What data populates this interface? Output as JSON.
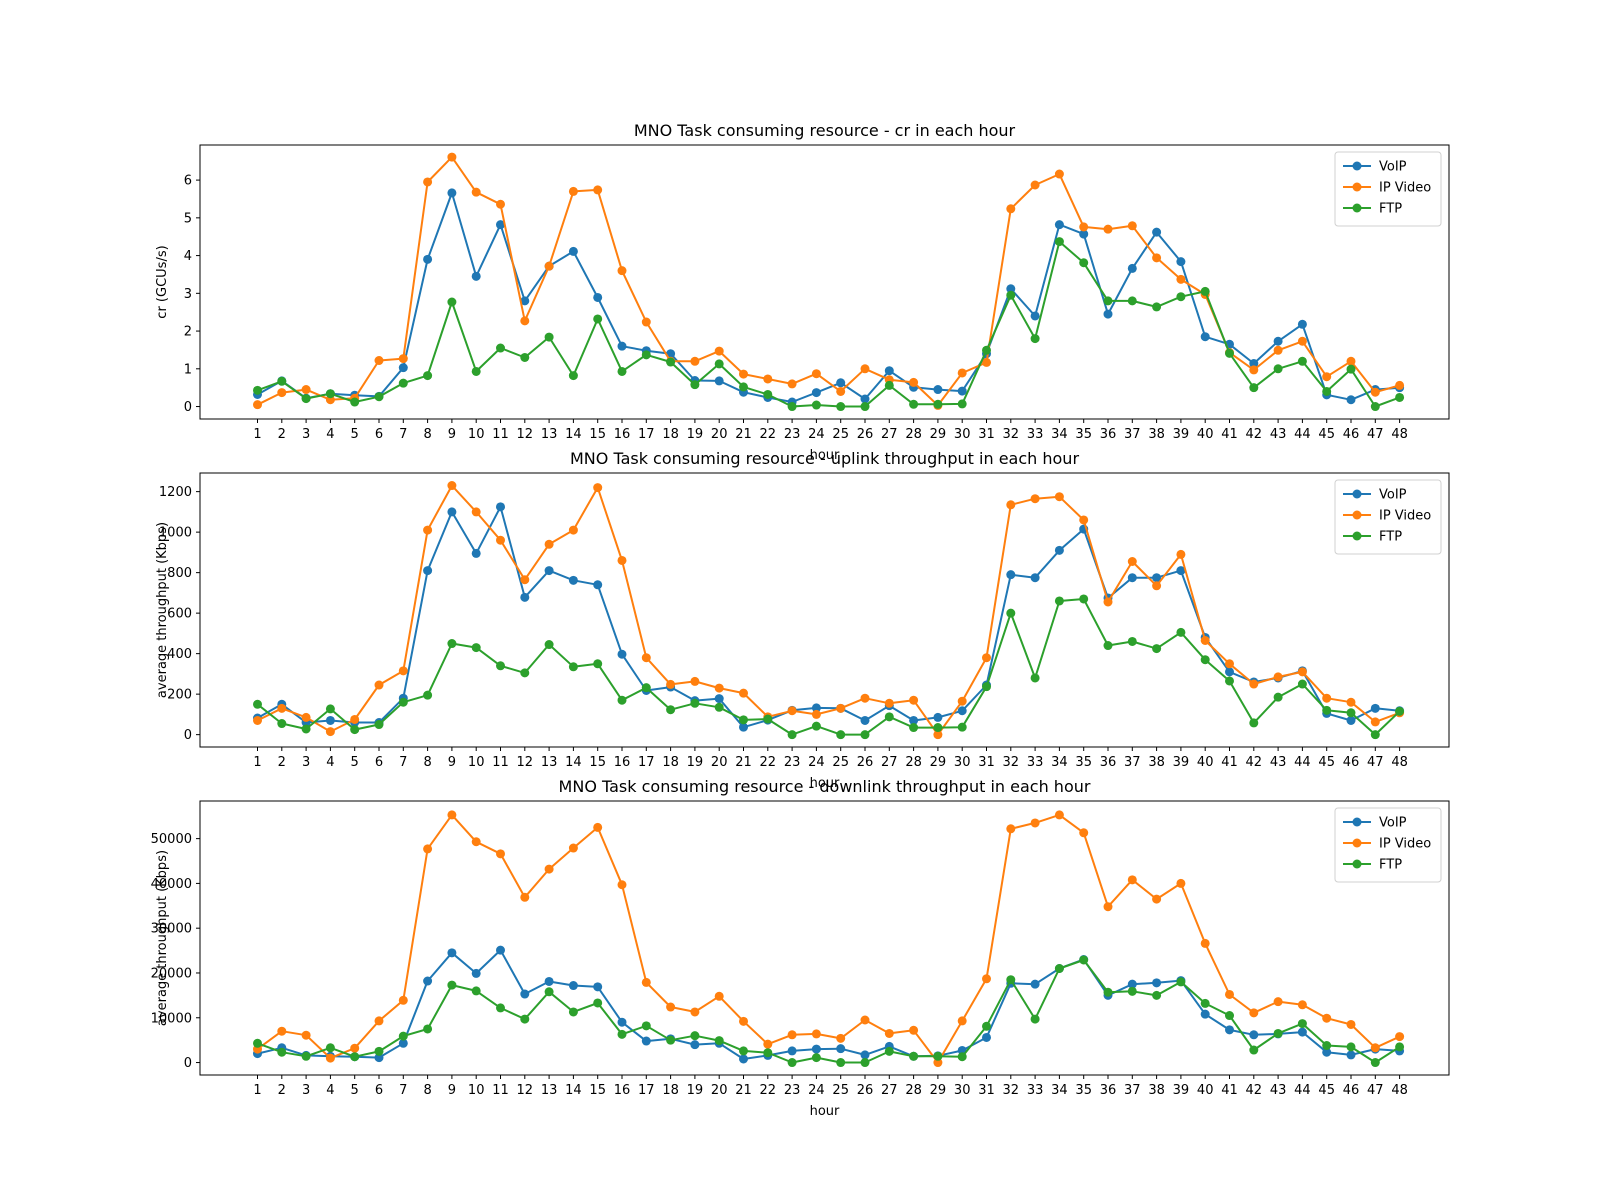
{
  "chart_data": [
    {
      "type": "line",
      "title": "MNO Task consuming resource - cr in each hour",
      "xlabel": "hour",
      "ylabel": "cr (GCUs/s)",
      "ylim": [
        -0.33,
        6.93
      ],
      "yticks": [
        0,
        1,
        2,
        3,
        4,
        5,
        6
      ],
      "legend": "top-right",
      "grid": false,
      "x": [
        1,
        2,
        3,
        4,
        5,
        6,
        7,
        8,
        9,
        10,
        11,
        12,
        13,
        14,
        15,
        16,
        17,
        18,
        19,
        20,
        21,
        22,
        23,
        24,
        25,
        26,
        27,
        28,
        29,
        30,
        31,
        32,
        33,
        34,
        35,
        36,
        37,
        38,
        39,
        40,
        41,
        42,
        43,
        44,
        45,
        46,
        47,
        48
      ],
      "series": [
        {
          "name": "VoIP",
          "color": "#1f77b4",
          "values": [
            0.32,
            0.68,
            0.22,
            0.34,
            0.3,
            0.27,
            1.03,
            3.9,
            5.66,
            3.45,
            4.82,
            2.8,
            3.72,
            4.11,
            2.89,
            1.6,
            1.48,
            1.4,
            0.69,
            0.68,
            0.38,
            0.24,
            0.12,
            0.37,
            0.63,
            0.2,
            0.95,
            0.51,
            0.45,
            0.41,
            1.4,
            3.12,
            2.4,
            4.82,
            4.57,
            2.45,
            3.66,
            4.62,
            3.84,
            1.85,
            1.65,
            1.14,
            1.73,
            2.18,
            0.31,
            0.18,
            0.45,
            0.5
          ]
        },
        {
          "name": "IP Video",
          "color": "#ff7f0e",
          "values": [
            0.05,
            0.37,
            0.45,
            0.18,
            0.22,
            1.22,
            1.27,
            5.95,
            6.61,
            5.68,
            5.36,
            2.27,
            3.72,
            5.7,
            5.74,
            3.6,
            2.24,
            1.2,
            1.2,
            1.47,
            0.86,
            0.73,
            0.6,
            0.87,
            0.4,
            1.0,
            0.71,
            0.64,
            0.03,
            0.89,
            1.17,
            5.24,
            5.87,
            6.16,
            4.76,
            4.7,
            4.79,
            3.94,
            3.37,
            2.97,
            1.43,
            0.97,
            1.49,
            1.73,
            0.79,
            1.2,
            0.38,
            0.56
          ]
        },
        {
          "name": "FTP",
          "color": "#2ca02c",
          "values": [
            0.43,
            0.67,
            0.21,
            0.34,
            0.12,
            0.26,
            0.62,
            0.82,
            2.77,
            0.93,
            1.55,
            1.3,
            1.84,
            0.82,
            2.32,
            0.93,
            1.37,
            1.18,
            0.58,
            1.13,
            0.52,
            0.32,
            0.0,
            0.04,
            0.0,
            0.0,
            0.56,
            0.06,
            0.06,
            0.07,
            1.49,
            2.95,
            1.8,
            4.37,
            3.81,
            2.8,
            2.8,
            2.64,
            2.91,
            3.05,
            1.41,
            0.5,
            1.0,
            1.2,
            0.4,
            0.99,
            0.0,
            0.24
          ]
        }
      ]
    },
    {
      "type": "line",
      "title": "MNO Task consuming resource - uplink throughput in each hour",
      "xlabel": "hour",
      "ylabel": "average throughput (Kbps)",
      "ylim": [
        -61,
        1292
      ],
      "yticks": [
        0,
        200,
        400,
        600,
        800,
        1000,
        1200
      ],
      "legend": "top-right",
      "grid": false,
      "x": [
        1,
        2,
        3,
        4,
        5,
        6,
        7,
        8,
        9,
        10,
        11,
        12,
        13,
        14,
        15,
        16,
        17,
        18,
        19,
        20,
        21,
        22,
        23,
        24,
        25,
        26,
        27,
        28,
        29,
        30,
        31,
        32,
        33,
        34,
        35,
        36,
        37,
        38,
        39,
        40,
        41,
        42,
        43,
        44,
        45,
        46,
        47,
        48
      ],
      "series": [
        {
          "name": "VoIP",
          "color": "#1f77b4",
          "values": [
            82,
            150,
            60,
            70,
            60,
            60,
            180,
            810,
            1100,
            895,
            1125,
            678,
            810,
            762,
            740,
            397,
            218,
            235,
            168,
            178,
            37,
            72,
            120,
            132,
            130,
            70,
            143,
            70,
            85,
            118,
            245,
            790,
            775,
            910,
            1015,
            675,
            775,
            775,
            810,
            480,
            310,
            260,
            280,
            315,
            105,
            70,
            130,
            118
          ]
        },
        {
          "name": "IP Video",
          "color": "#ff7f0e",
          "values": [
            70,
            130,
            85,
            15,
            75,
            245,
            315,
            1010,
            1230,
            1100,
            960,
            765,
            940,
            1010,
            1220,
            860,
            380,
            248,
            263,
            230,
            205,
            88,
            118,
            100,
            130,
            180,
            155,
            170,
            0,
            165,
            380,
            1135,
            1165,
            1175,
            1060,
            655,
            855,
            735,
            890,
            465,
            350,
            250,
            285,
            310,
            180,
            160,
            63,
            108
          ]
        },
        {
          "name": "FTP",
          "color": "#2ca02c",
          "values": [
            150,
            55,
            28,
            127,
            25,
            50,
            160,
            195,
            450,
            430,
            340,
            305,
            445,
            335,
            350,
            170,
            232,
            123,
            155,
            135,
            73,
            77,
            0,
            42,
            0,
            0,
            88,
            35,
            35,
            37,
            237,
            600,
            280,
            660,
            670,
            440,
            460,
            425,
            505,
            370,
            265,
            58,
            185,
            250,
            120,
            108,
            0,
            115
          ]
        }
      ]
    },
    {
      "type": "line",
      "title": "MNO Task consuming resource - downlink throughput in each hour",
      "xlabel": "hour",
      "ylabel": "average throughput (Kbps)",
      "ylim": [
        -2780,
        58400
      ],
      "yticks": [
        0,
        10000,
        20000,
        30000,
        40000,
        50000
      ],
      "legend": "top-right",
      "grid": false,
      "x": [
        1,
        2,
        3,
        4,
        5,
        6,
        7,
        8,
        9,
        10,
        11,
        12,
        13,
        14,
        15,
        16,
        17,
        18,
        19,
        20,
        21,
        22,
        23,
        24,
        25,
        26,
        27,
        28,
        29,
        30,
        31,
        32,
        33,
        34,
        35,
        36,
        37,
        38,
        39,
        40,
        41,
        42,
        43,
        44,
        45,
        46,
        47,
        48
      ],
      "series": [
        {
          "name": "VoIP",
          "color": "#1f77b4",
          "values": [
            2000,
            3300,
            1600,
            1400,
            1300,
            1100,
            4300,
            18200,
            24500,
            19900,
            25100,
            15300,
            18100,
            17200,
            16900,
            9000,
            4800,
            5300,
            4000,
            4300,
            800,
            1600,
            2600,
            3000,
            3100,
            1700,
            3600,
            1400,
            1500,
            2700,
            5600,
            17700,
            17500,
            21000,
            23000,
            15000,
            17500,
            17800,
            18300,
            10800,
            7300,
            6200,
            6400,
            6800,
            2300,
            1700,
            3000,
            2600
          ]
        },
        {
          "name": "IP Video",
          "color": "#ff7f0e",
          "values": [
            3000,
            7000,
            6100,
            1000,
            3200,
            9300,
            13900,
            47700,
            55300,
            49300,
            46600,
            36900,
            43200,
            47900,
            52500,
            39700,
            17900,
            12400,
            11300,
            14800,
            9200,
            4100,
            6200,
            6400,
            5400,
            9500,
            6500,
            7200,
            0,
            9300,
            18700,
            52200,
            53500,
            55300,
            51300,
            34800,
            40800,
            36500,
            40000,
            26600,
            15200,
            11100,
            13600,
            12900,
            9900,
            8500,
            3300,
            5800
          ]
        },
        {
          "name": "FTP",
          "color": "#2ca02c",
          "values": [
            4300,
            2300,
            1400,
            3300,
            1300,
            2500,
            5900,
            7500,
            17300,
            16000,
            12200,
            9700,
            15800,
            11300,
            13300,
            6300,
            8200,
            5000,
            6000,
            4900,
            2600,
            2200,
            0,
            1100,
            0,
            0,
            2500,
            1400,
            1400,
            1300,
            8100,
            18500,
            9700,
            21000,
            22900,
            15700,
            15900,
            15000,
            18000,
            13200,
            10500,
            2800,
            6500,
            8700,
            3800,
            3500,
            0,
            3500
          ]
        }
      ]
    }
  ]
}
